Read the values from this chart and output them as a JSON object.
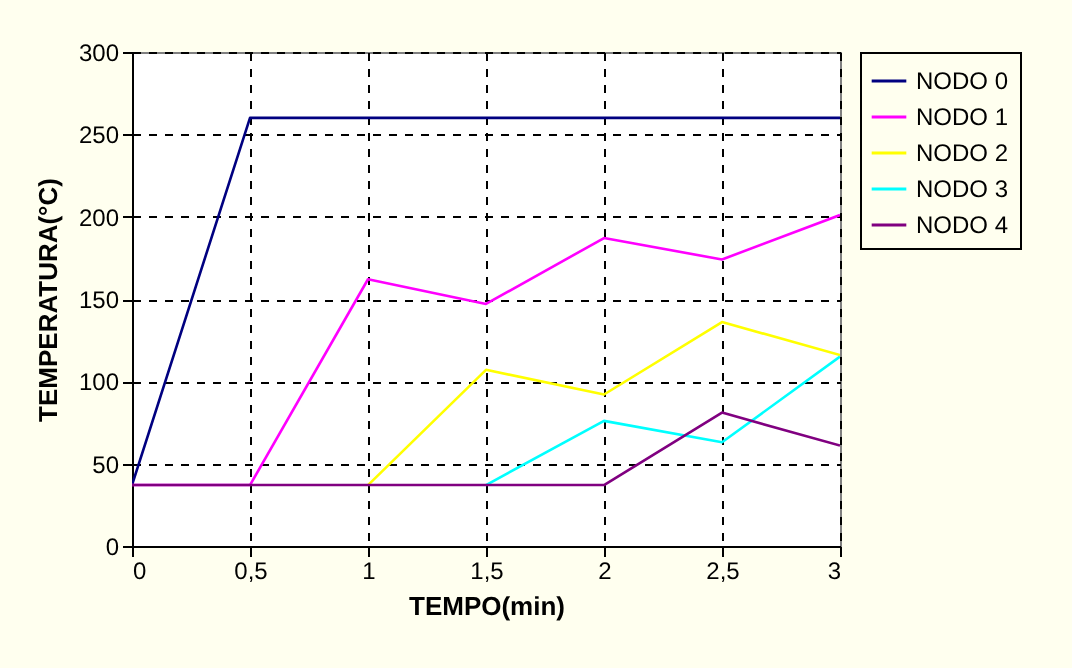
{
  "chart_data": {
    "type": "line",
    "xlabel": "TEMPO(min)",
    "ylabel": "TEMPERATURA(°C)",
    "x": [
      0,
      0.5,
      1,
      1.5,
      2,
      2.5,
      3
    ],
    "series": [
      {
        "name": "NODO 0",
        "color": "#000080",
        "values": [
          37,
          260,
          260,
          260,
          260,
          260,
          260
        ]
      },
      {
        "name": "NODO 1",
        "color": "#ff00ff",
        "values": [
          37,
          37,
          162,
          147,
          187,
          174,
          201
        ]
      },
      {
        "name": "NODO 2",
        "color": "#ffff00",
        "values": [
          null,
          null,
          37,
          107,
          92,
          136,
          116
        ]
      },
      {
        "name": "NODO 3",
        "color": "#00ffff",
        "values": [
          null,
          null,
          null,
          37,
          76,
          63,
          115
        ]
      },
      {
        "name": "NODO 4",
        "color": "#800080",
        "values": [
          37,
          37,
          37,
          37,
          37,
          81,
          61
        ]
      }
    ],
    "xlim": [
      0,
      3
    ],
    "xticks": [
      {
        "value": 0,
        "label": "0"
      },
      {
        "value": 0.5,
        "label": "0,5"
      },
      {
        "value": 1,
        "label": "1"
      },
      {
        "value": 1.5,
        "label": "1,5"
      },
      {
        "value": 2,
        "label": "2"
      },
      {
        "value": 2.5,
        "label": "2,5"
      },
      {
        "value": 3,
        "label": "3"
      }
    ],
    "ylim": [
      0,
      300
    ],
    "yticks": [
      0,
      50,
      100,
      150,
      200,
      250,
      300
    ],
    "grid": true,
    "legend": "right",
    "line_style": "solid",
    "marker": "none"
  }
}
